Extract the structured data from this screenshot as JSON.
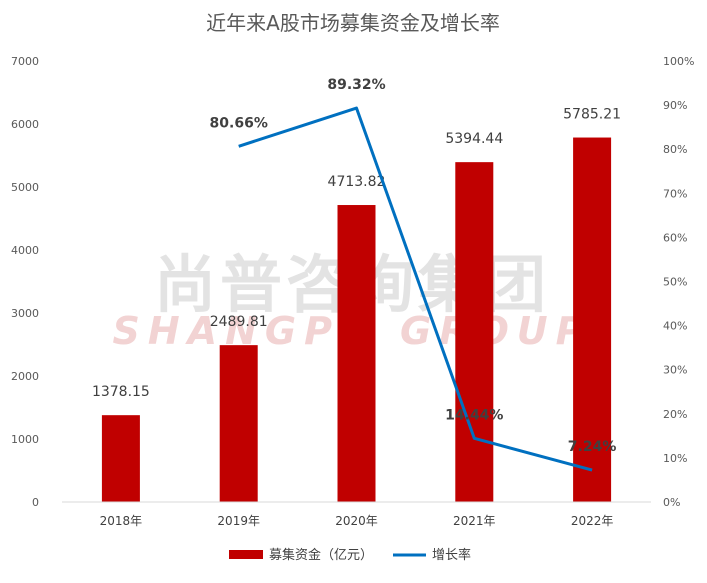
{
  "watermark": {
    "cn": "尚普咨询集团",
    "en": "SHANGPU GROUP"
  },
  "chart_data": {
    "type": "bar",
    "title": "近年来A股市场募集资金及增长率",
    "categories": [
      "2018年",
      "2019年",
      "2020年",
      "2021年",
      "2022年"
    ],
    "series": [
      {
        "name": "募集资金（亿元）",
        "type": "bar",
        "axis": "left",
        "color": "#c00000",
        "values": [
          1378.15,
          2489.81,
          4713.82,
          5394.44,
          5785.21
        ],
        "labels": [
          "1378.15",
          "2489.81",
          "4713.82",
          "5394.44",
          "5785.21"
        ]
      },
      {
        "name": "增长率",
        "type": "line",
        "axis": "right",
        "color": "#0070c0",
        "values": [
          null,
          80.66,
          89.32,
          14.44,
          7.24
        ],
        "labels": [
          "",
          "80.66%",
          "89.32%",
          "14.44%",
          "7.24%"
        ]
      }
    ],
    "y_left": {
      "min": 0,
      "max": 7000,
      "ticks": [
        "0",
        "1000",
        "2000",
        "3000",
        "4000",
        "5000",
        "6000",
        "7000"
      ]
    },
    "y_right": {
      "min": 0,
      "max": 100,
      "ticks": [
        "0%",
        "10%",
        "20%",
        "30%",
        "40%",
        "50%",
        "60%",
        "70%",
        "80%",
        "90%",
        "100%"
      ]
    },
    "grid": false,
    "legend_position": "bottom"
  }
}
